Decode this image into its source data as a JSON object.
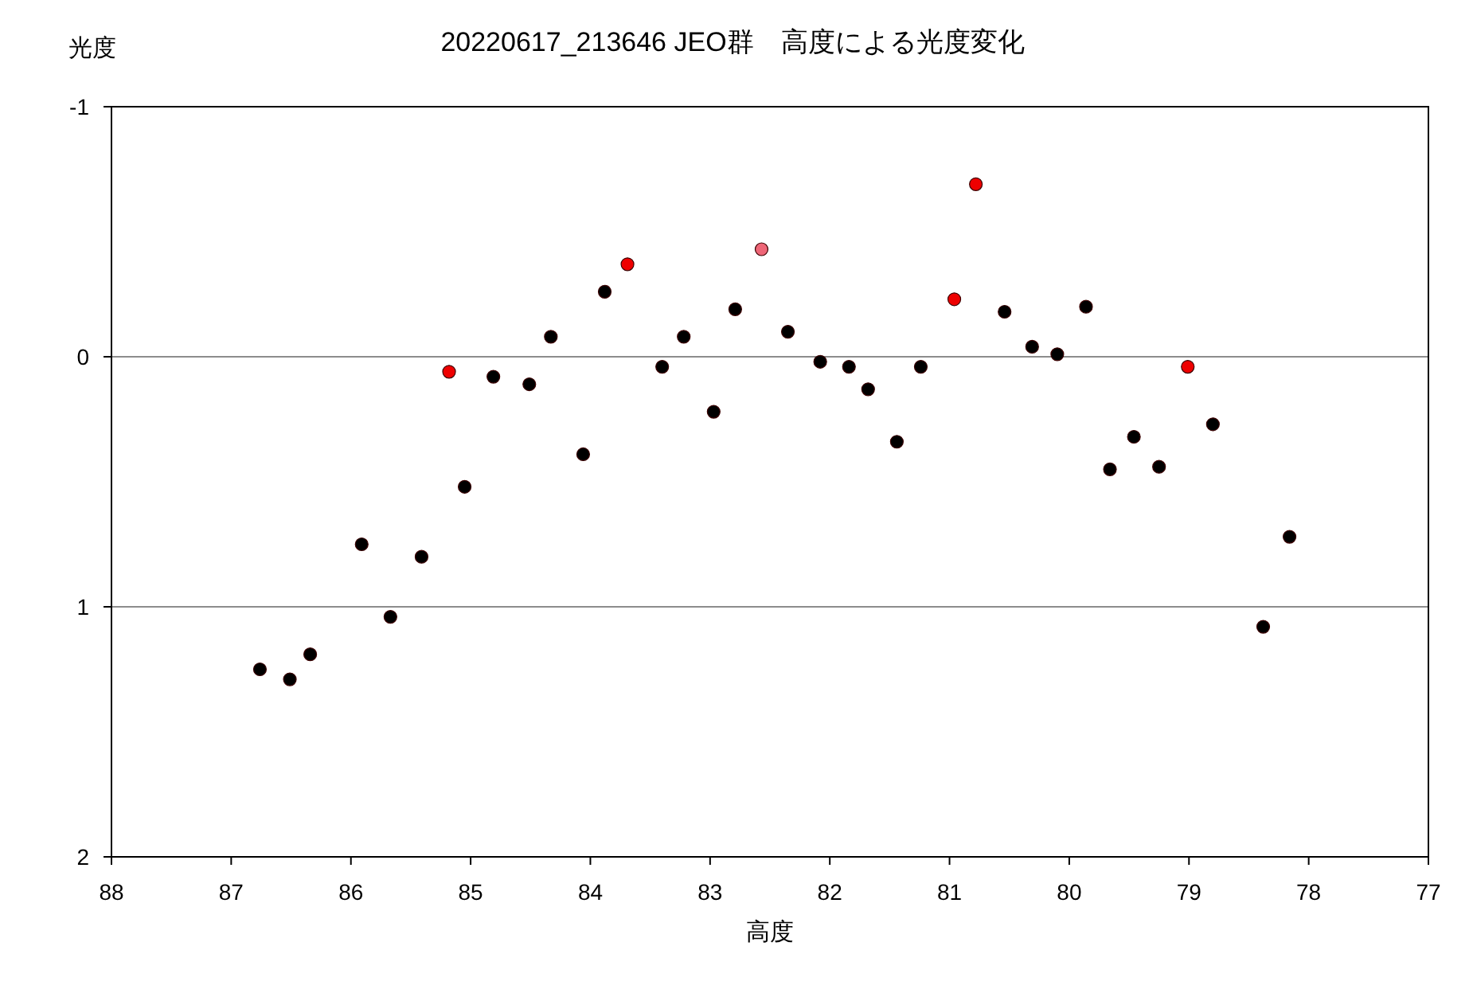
{
  "chart_data": {
    "type": "scatter",
    "title": "20220617_213646 JEO群　高度による光度変化",
    "xlabel": "高度",
    "ylabel": "光度",
    "xlim": [
      88,
      77
    ],
    "xticks": [
      88,
      87,
      86,
      85,
      84,
      83,
      82,
      81,
      80,
      79,
      78,
      77
    ],
    "ylim": [
      2,
      -1
    ],
    "yticks": [
      -1,
      0,
      1,
      2
    ],
    "grid": "y",
    "marker": "circle",
    "series": [
      {
        "color": "#000000",
        "x": [
          86.76,
          86.51,
          86.34,
          85.91,
          85.67,
          85.41,
          85.05,
          84.81,
          84.51,
          84.33,
          84.06,
          83.88,
          83.4,
          83.22,
          82.97,
          82.79,
          82.35,
          82.08,
          81.84,
          81.68,
          81.44,
          81.24,
          80.54,
          80.31,
          80.1,
          79.86,
          79.66,
          79.46,
          79.25,
          78.8,
          78.38,
          78.16
        ],
        "values": [
          1.25,
          1.29,
          1.19,
          0.75,
          1.04,
          0.8,
          0.52,
          0.08,
          0.11,
          -0.08,
          0.39,
          -0.26,
          0.04,
          -0.08,
          0.22,
          -0.19,
          -0.1,
          0.02,
          0.04,
          0.13,
          0.34,
          0.04,
          -0.18,
          -0.04,
          -0.01,
          -0.2,
          0.45,
          0.32,
          0.44,
          0.27,
          1.08,
          0.72
        ]
      },
      {
        "color": "#ee0000",
        "x": [
          85.18,
          83.69,
          80.96,
          80.78,
          79.01
        ],
        "values": [
          0.06,
          -0.37,
          -0.23,
          -0.69,
          0.04
        ]
      },
      {
        "color": "#ee6677",
        "x": [
          82.57
        ],
        "values": [
          -0.43
        ]
      }
    ]
  }
}
